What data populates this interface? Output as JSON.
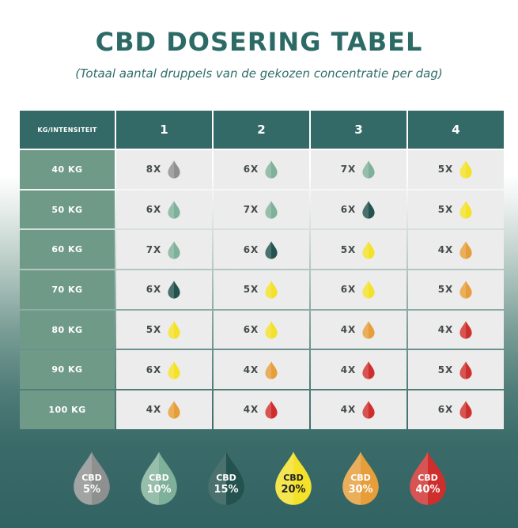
{
  "title": "CBD DOSERING TABEL",
  "subtitle": "(Totaal aantal druppels van de gekozen concentratie per dag)",
  "table": {
    "corner_label": "KG/INTENSITEIT",
    "columns": [
      "1",
      "2",
      "3",
      "4"
    ],
    "rows": [
      {
        "label": "40 KG",
        "cells": [
          {
            "count": "8X",
            "conc": "5%"
          },
          {
            "count": "6X",
            "conc": "10%"
          },
          {
            "count": "7X",
            "conc": "10%"
          },
          {
            "count": "5X",
            "conc": "20%"
          }
        ]
      },
      {
        "label": "50 KG",
        "cells": [
          {
            "count": "6X",
            "conc": "10%"
          },
          {
            "count": "7X",
            "conc": "10%"
          },
          {
            "count": "6X",
            "conc": "15%"
          },
          {
            "count": "5X",
            "conc": "20%"
          }
        ]
      },
      {
        "label": "60 KG",
        "cells": [
          {
            "count": "7X",
            "conc": "10%"
          },
          {
            "count": "6X",
            "conc": "15%"
          },
          {
            "count": "5X",
            "conc": "20%"
          },
          {
            "count": "4X",
            "conc": "30%"
          }
        ]
      },
      {
        "label": "70 KG",
        "cells": [
          {
            "count": "6X",
            "conc": "15%"
          },
          {
            "count": "5X",
            "conc": "20%"
          },
          {
            "count": "6X",
            "conc": "20%"
          },
          {
            "count": "5X",
            "conc": "30%"
          }
        ]
      },
      {
        "label": "80 KG",
        "cells": [
          {
            "count": "5X",
            "conc": "20%"
          },
          {
            "count": "6X",
            "conc": "20%"
          },
          {
            "count": "4X",
            "conc": "30%"
          },
          {
            "count": "4X",
            "conc": "40%"
          }
        ]
      },
      {
        "label": "90 KG",
        "cells": [
          {
            "count": "6X",
            "conc": "20%"
          },
          {
            "count": "4X",
            "conc": "30%"
          },
          {
            "count": "4X",
            "conc": "40%"
          },
          {
            "count": "5X",
            "conc": "40%"
          }
        ]
      },
      {
        "label": "100 KG",
        "cells": [
          {
            "count": "4X",
            "conc": "30%"
          },
          {
            "count": "4X",
            "conc": "40%"
          },
          {
            "count": "4X",
            "conc": "40%"
          },
          {
            "count": "6X",
            "conc": "40%"
          }
        ]
      }
    ]
  },
  "legend": [
    {
      "label": "CBD",
      "value": "5%",
      "color": "#8e8f8f",
      "icon": "drop-icon"
    },
    {
      "label": "CBD",
      "value": "10%",
      "color": "#7fb099",
      "icon": "drop-icon"
    },
    {
      "label": "CBD",
      "value": "15%",
      "color": "#23524f",
      "icon": "drop-icon"
    },
    {
      "label": "CBD",
      "value": "20%",
      "color": "#f3e12a",
      "icon": "drop-icon"
    },
    {
      "label": "CBD",
      "value": "30%",
      "color": "#e69e3a",
      "icon": "drop-icon"
    },
    {
      "label": "CBD",
      "value": "40%",
      "color": "#cf2f2c",
      "icon": "drop-icon"
    }
  ]
}
